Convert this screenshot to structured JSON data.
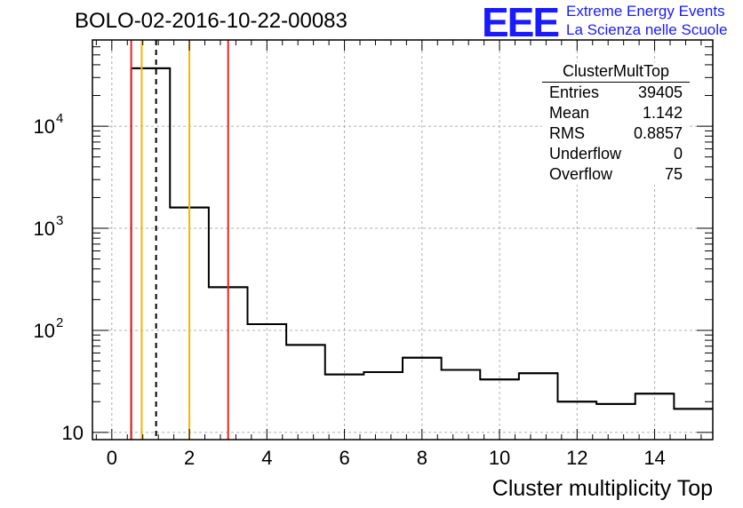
{
  "title": "BOLO-02-2016-10-22-00083",
  "logo": {
    "mark": "EEE",
    "line1": "Extreme Energy Events",
    "line2": "La Scienza nelle Scuole",
    "color": "#1a1aff"
  },
  "stats": {
    "title": "ClusterMultTop",
    "rows": [
      {
        "label": "Entries",
        "value": "39405"
      },
      {
        "label": "Mean",
        "value": "1.142"
      },
      {
        "label": "RMS",
        "value": "0.8857"
      },
      {
        "label": "Underflow",
        "value": "0"
      },
      {
        "label": "Overflow",
        "value": "75"
      }
    ]
  },
  "chart_data": {
    "type": "histogram",
    "title": "BOLO-02-2016-10-22-00083",
    "xlabel": "Cluster multiplicity Top",
    "ylabel": "",
    "yscale": "log",
    "xlim": [
      -0.5,
      15.5
    ],
    "ylim": [
      8.5,
      70000
    ],
    "grid": true,
    "bin_edges": [
      0.5,
      1.5,
      2.5,
      3.5,
      4.5,
      5.5,
      6.5,
      7.5,
      8.5,
      9.5,
      10.5,
      11.5,
      12.5,
      13.5,
      14.5,
      15.5
    ],
    "values": [
      37000,
      1600,
      265,
      115,
      72,
      37,
      39,
      54,
      41,
      33,
      38,
      20,
      19,
      24,
      17
    ],
    "x_ticks": [
      0,
      2,
      4,
      6,
      8,
      10,
      12,
      14
    ],
    "y_ticks": [
      {
        "value": 10,
        "base": "10",
        "exp": ""
      },
      {
        "value": 100,
        "base": "10",
        "exp": "2"
      },
      {
        "value": 1000,
        "base": "10",
        "exp": "3"
      },
      {
        "value": 10000,
        "base": "10",
        "exp": "4"
      }
    ],
    "vertical_lines": [
      {
        "x": 0.5,
        "color": "#e8231e",
        "style": "solid"
      },
      {
        "x": 0.77,
        "color": "#ffb300",
        "style": "solid"
      },
      {
        "x": 1.142,
        "color": "#000000",
        "style": "dashed"
      },
      {
        "x": 2.0,
        "color": "#ffb300",
        "style": "solid"
      },
      {
        "x": 3.0,
        "color": "#e8231e",
        "style": "solid"
      }
    ]
  }
}
